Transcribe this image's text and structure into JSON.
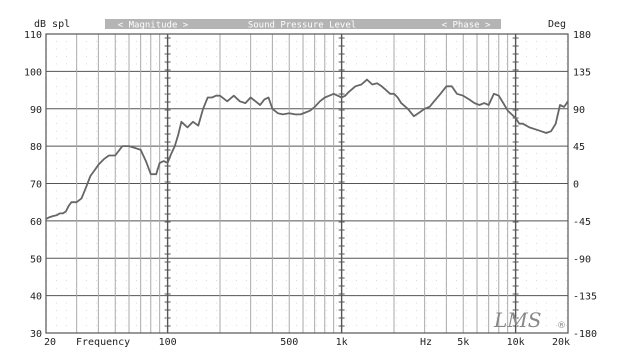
{
  "header": {
    "left_unit": "dB spl",
    "magnitude_tab": "< Magnitude >",
    "title": "Sound Pressure Level",
    "phase_tab": "< Phase >",
    "right_unit": "Deg"
  },
  "footer": {
    "frequency_label": "Frequency",
    "hz_label": "Hz"
  },
  "logo": {
    "text": "LMS",
    "mark": "®"
  },
  "colors": {
    "background": "#ffffff",
    "tab_fill": "#b4b4b4",
    "tab_text": "#ffffff",
    "major_grid": "#555555",
    "minor_grid": "#aaaaaa",
    "curve": "#666666",
    "text": "#222222"
  },
  "chart_data": {
    "type": "line",
    "x_scale": "log",
    "xlim": [
      20,
      20000
    ],
    "ylim": [
      30,
      110
    ],
    "ylim_right": [
      -180,
      180
    ],
    "y_ticks": [
      "30",
      "40",
      "50",
      "60",
      "70",
      "80",
      "90",
      "100",
      "110"
    ],
    "y_right_ticks": [
      "-180",
      "-135",
      "-90",
      "-45",
      "0",
      "45",
      "90",
      "135",
      "180"
    ],
    "x_tick_labels": [
      {
        "value": 20,
        "label": "20"
      },
      {
        "value": 100,
        "label": "100"
      },
      {
        "value": 500,
        "label": "500"
      },
      {
        "value": 1000,
        "label": "1k"
      },
      {
        "value": 5000,
        "label": "5k"
      },
      {
        "value": 10000,
        "label": "10k"
      },
      {
        "value": 20000,
        "label": "20k"
      }
    ],
    "grid": true,
    "series": [
      {
        "x": [
          20,
          21,
          22,
          23,
          24,
          25,
          26,
          27,
          28,
          29,
          30,
          32,
          34,
          36,
          38,
          40,
          43,
          46,
          50,
          55,
          60,
          65,
          70,
          75,
          80,
          83,
          86,
          90,
          95,
          100,
          105,
          110,
          115,
          120,
          130,
          140,
          150,
          160,
          170,
          180,
          190,
          200,
          220,
          240,
          260,
          280,
          300,
          320,
          340,
          360,
          380,
          400,
          430,
          460,
          500,
          540,
          580,
          620,
          660,
          700,
          750,
          800,
          850,
          900,
          950,
          1000,
          1050,
          1100,
          1200,
          1300,
          1400,
          1500,
          1600,
          1700,
          1800,
          1900,
          2000,
          2100,
          2200,
          2400,
          2600,
          2800,
          3000,
          3200,
          3400,
          3700,
          4000,
          4300,
          4600,
          5000,
          5400,
          5800,
          6200,
          6600,
          7000,
          7500,
          8000,
          8500,
          9000,
          9500,
          10000,
          10500,
          11000,
          12000,
          13000,
          14000,
          15000,
          16000,
          17000,
          18000,
          19000,
          20000
        ],
        "y": [
          60.5,
          61,
          61.3,
          61.5,
          62,
          62,
          62.5,
          64,
          65,
          65,
          65,
          66,
          69,
          72,
          73.5,
          75,
          76.5,
          77.5,
          77.5,
          80,
          80,
          79.5,
          79,
          76,
          72.5,
          72.5,
          72.5,
          75.5,
          76,
          75.5,
          78,
          80,
          83,
          86.5,
          85,
          86.5,
          85.5,
          90,
          93,
          93,
          93.5,
          93.5,
          92,
          93.5,
          92,
          91.5,
          93,
          92,
          91,
          92.5,
          93,
          90,
          88.8,
          88.5,
          88.8,
          88.5,
          88.5,
          89,
          89.5,
          90.5,
          92,
          93,
          93.5,
          94,
          93.5,
          93,
          93.5,
          94.5,
          96,
          96.5,
          97.8,
          96.5,
          96.8,
          96,
          95,
          94,
          94,
          93,
          91.5,
          90,
          88,
          89,
          90,
          90.5,
          92,
          94,
          96,
          96,
          94,
          93.5,
          92.5,
          91.5,
          91,
          91.5,
          91,
          94,
          93.5,
          91.5,
          89.5,
          88.5,
          87.5,
          86,
          86,
          85,
          84.5,
          84,
          83.5,
          84,
          86,
          91,
          90.5,
          92
        ]
      }
    ]
  }
}
